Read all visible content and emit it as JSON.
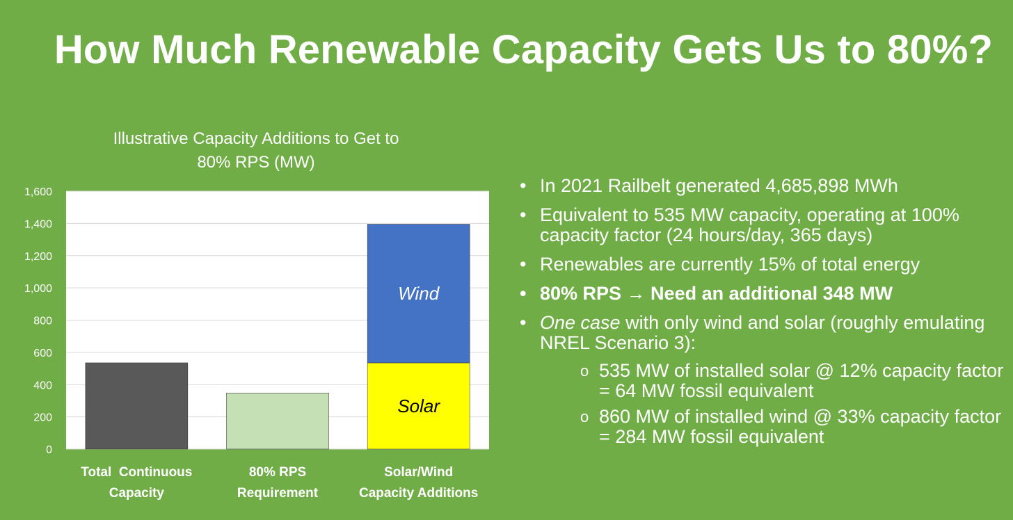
{
  "slide": {
    "title": "How Much Renewable Capacity Gets Us to 80%?"
  },
  "chart_data": {
    "type": "bar",
    "title_line1": "Illustrative Capacity Additions to Get to",
    "title_line2": "80% RPS (MW)",
    "ylim": [
      0,
      1600
    ],
    "y_ticks": [
      0,
      200,
      400,
      600,
      800,
      1000,
      1200,
      1400,
      1600
    ],
    "y_tick_labels": [
      "0",
      "200",
      "400",
      "600",
      "800",
      "1,000",
      "1,200",
      "1,400",
      "1,600"
    ],
    "grid": true,
    "categories": [
      {
        "line1": "Total  Continuous",
        "line2": "Capacity"
      },
      {
        "line1": "80% RPS",
        "line2": "Requirement"
      },
      {
        "line1": "Solar/Wind",
        "line2": "Capacity Additions"
      }
    ],
    "bars": [
      {
        "segments": [
          {
            "value": 535,
            "color": "#595959",
            "label": ""
          }
        ]
      },
      {
        "segments": [
          {
            "value": 348,
            "color": "#c5e0b4",
            "label": ""
          }
        ]
      },
      {
        "segments": [
          {
            "value": 535,
            "color": "#ffff00",
            "label": "Solar"
          },
          {
            "value": 860,
            "color": "#4472c4",
            "label": "Wind"
          }
        ]
      }
    ]
  },
  "bullets": [
    {
      "text": "In 2021 Railbelt generated 4,685,898 MWh"
    },
    {
      "text": "Equivalent to 535 MW capacity, operating at 100% capacity factor (24 hours/day, 365 days)"
    },
    {
      "text": "Renewables are currently 15% of total energy"
    },
    {
      "text": "80% RPS → Need an additional 348 MW"
    },
    {
      "emph": "One case",
      "text": " with only wind and solar (roughly emulating NREL Scenario 3):",
      "marker": "o",
      "subs": [
        "535 MW of installed solar @ 12% capacity factor = 64 MW fossil equivalent",
        "860 MW of installed wind @ 33% capacity factor = 284 MW fossil equivalent"
      ]
    }
  ]
}
